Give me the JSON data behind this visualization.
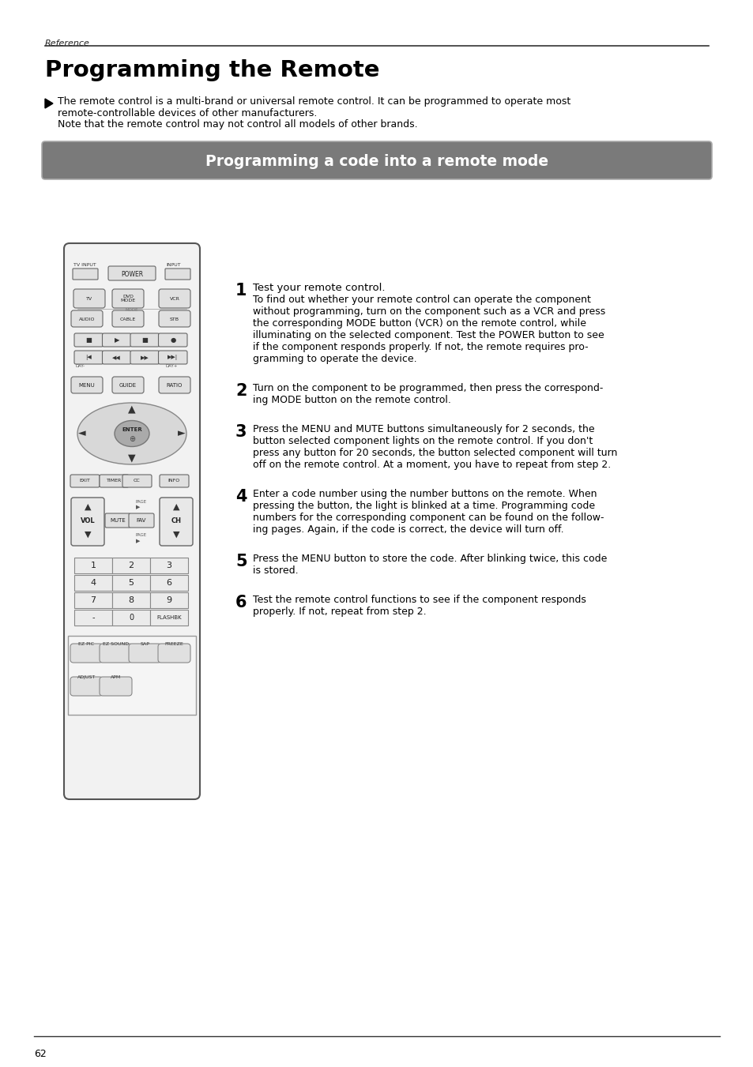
{
  "page_bg": "#ffffff",
  "reference_text": "Reference",
  "title": "Programming the Remote",
  "intro_line1": "The remote control is a multi-brand or universal remote control. It can be programmed to operate most",
  "intro_line2": "remote-controllable devices of other manufacturers.",
  "intro_line3": "Note that the remote control may not control all models of other brands.",
  "banner_text": "Programming a code into a remote mode",
  "banner_bg": "#7a7a7a",
  "banner_text_color": "#ffffff",
  "step1_title": "Test your remote control.",
  "step1_body": "To find out whether your remote control can operate the component\nwithout programming, turn on the component such as a VCR and press\nthe corresponding MODE button (VCR) on the remote control, while\nilluminating on the selected component. Test the POWER button to see\nif the component responds properly. If not, the remote requires pro-\ngramming to operate the device.",
  "step2_body": "Turn on the component to be programmed, then press the correspond-\ning MODE button on the remote control.",
  "step3_body": "Press the MENU and MUTE buttons simultaneously for 2 seconds, the\nbutton selected component lights on the remote control. If you don't\npress any button for 20 seconds, the button selected component will turn\noff on the remote control. At a moment, you have to repeat from step 2.",
  "step4_body": "Enter a code number using the number buttons on the remote. When\npressing the button, the light is blinked at a time. Programming code\nnumbers for the corresponding component can be found on the follow-\ning pages. Again, if the code is correct, the device will turn off.",
  "step5_body": "Press the MENU button to store the code. After blinking twice, this code\nis stored.",
  "step6_body": "Test the remote control functions to see if the component responds\nproperly. If not, repeat from step 2.",
  "page_number": "62"
}
